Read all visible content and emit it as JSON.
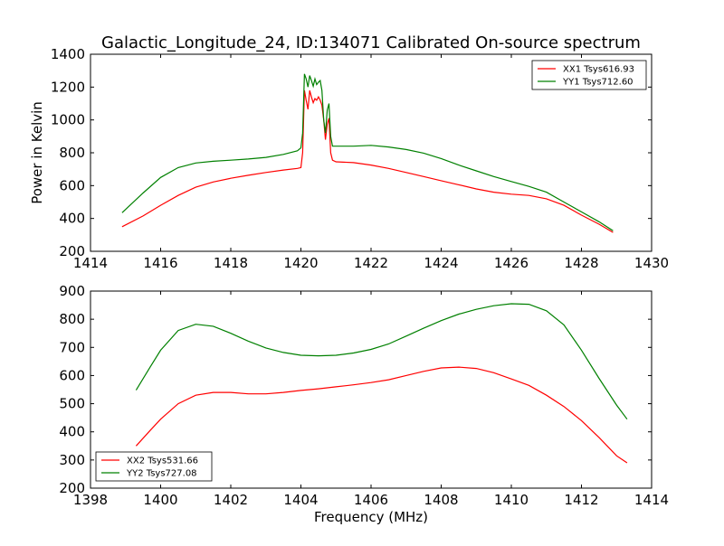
{
  "figure": {
    "title": "Galactic_Longitude_24, ID:134071 Calibrated On-source spectrum"
  },
  "chart_data": [
    {
      "type": "line",
      "title": "Galactic_Longitude_24, ID:134071 Calibrated On-source spectrum",
      "xlabel": "",
      "ylabel": "Power in Kelvin",
      "xlim": [
        1414,
        1430
      ],
      "ylim": [
        200,
        1400
      ],
      "xticks": [
        1414,
        1416,
        1418,
        1420,
        1422,
        1424,
        1426,
        1428,
        1430
      ],
      "yticks": [
        200,
        400,
        600,
        800,
        1000,
        1200,
        1400
      ],
      "legend": "top-right",
      "grid": false,
      "series": [
        {
          "name": "XX1 Tsys616.93",
          "color": "#ff0000",
          "x": [
            1414.9,
            1415.5,
            1416.0,
            1416.5,
            1417.0,
            1417.5,
            1418.0,
            1418.5,
            1419.0,
            1419.5,
            1419.9,
            1420.0,
            1420.05,
            1420.1,
            1420.15,
            1420.2,
            1420.25,
            1420.3,
            1420.35,
            1420.4,
            1420.45,
            1420.5,
            1420.55,
            1420.6,
            1420.65,
            1420.7,
            1420.75,
            1420.8,
            1420.85,
            1420.9,
            1421.0,
            1421.5,
            1422.0,
            1422.5,
            1423.0,
            1423.5,
            1424.0,
            1424.5,
            1425.0,
            1425.5,
            1426.0,
            1426.5,
            1427.0,
            1427.5,
            1428.0,
            1428.5,
            1428.9
          ],
          "values": [
            350,
            415,
            480,
            540,
            590,
            622,
            645,
            663,
            680,
            695,
            705,
            710,
            800,
            1180,
            1120,
            1065,
            1180,
            1140,
            1105,
            1130,
            1120,
            1140,
            1120,
            1090,
            1000,
            880,
            975,
            1010,
            800,
            755,
            745,
            740,
            725,
            705,
            680,
            655,
            630,
            605,
            580,
            560,
            548,
            540,
            520,
            480,
            420,
            365,
            315
          ]
        },
        {
          "name": "YY1 Tsys712.60",
          "color": "#008000",
          "x": [
            1414.9,
            1415.5,
            1416.0,
            1416.5,
            1417.0,
            1417.5,
            1418.0,
            1418.5,
            1419.0,
            1419.5,
            1419.9,
            1420.0,
            1420.05,
            1420.1,
            1420.15,
            1420.2,
            1420.25,
            1420.3,
            1420.35,
            1420.4,
            1420.45,
            1420.5,
            1420.55,
            1420.6,
            1420.65,
            1420.7,
            1420.75,
            1420.8,
            1420.85,
            1420.9,
            1421.0,
            1421.5,
            1422.0,
            1422.5,
            1423.0,
            1423.5,
            1424.0,
            1424.5,
            1425.0,
            1425.5,
            1426.0,
            1426.5,
            1427.0,
            1427.5,
            1428.0,
            1428.5,
            1428.9
          ],
          "values": [
            435,
            555,
            650,
            710,
            738,
            748,
            755,
            762,
            772,
            790,
            812,
            830,
            920,
            1280,
            1250,
            1200,
            1270,
            1240,
            1205,
            1250,
            1215,
            1230,
            1240,
            1180,
            1000,
            920,
            1060,
            1100,
            900,
            840,
            840,
            840,
            845,
            835,
            820,
            798,
            765,
            725,
            690,
            655,
            625,
            595,
            560,
            500,
            440,
            380,
            325
          ]
        }
      ]
    },
    {
      "type": "line",
      "title": "",
      "xlabel": "Frequency (MHz)",
      "ylabel": "",
      "xlim": [
        1398,
        1414
      ],
      "ylim": [
        200,
        900
      ],
      "xticks": [
        1398,
        1400,
        1402,
        1404,
        1406,
        1408,
        1410,
        1412,
        1414
      ],
      "yticks": [
        200,
        300,
        400,
        500,
        600,
        700,
        800,
        900
      ],
      "legend": "bottom-left",
      "grid": false,
      "series": [
        {
          "name": "XX2 Tsys531.66",
          "color": "#ff0000",
          "x": [
            1399.3,
            1399.7,
            1400.0,
            1400.5,
            1401.0,
            1401.5,
            1402.0,
            1402.5,
            1403.0,
            1403.5,
            1404.0,
            1404.5,
            1405.0,
            1405.5,
            1406.0,
            1406.5,
            1407.0,
            1407.5,
            1408.0,
            1408.5,
            1409.0,
            1409.5,
            1410.0,
            1410.5,
            1411.0,
            1411.5,
            1412.0,
            1412.5,
            1413.0,
            1413.3
          ],
          "values": [
            350,
            405,
            445,
            500,
            530,
            540,
            540,
            535,
            535,
            540,
            547,
            553,
            560,
            567,
            575,
            585,
            600,
            615,
            627,
            630,
            625,
            610,
            588,
            565,
            530,
            490,
            440,
            380,
            315,
            290
          ]
        },
        {
          "name": "YY2 Tsys727.08",
          "color": "#008000",
          "x": [
            1399.3,
            1399.7,
            1400.0,
            1400.5,
            1401.0,
            1401.5,
            1402.0,
            1402.5,
            1403.0,
            1403.5,
            1404.0,
            1404.5,
            1405.0,
            1405.5,
            1406.0,
            1406.5,
            1407.0,
            1407.5,
            1408.0,
            1408.5,
            1409.0,
            1409.5,
            1410.0,
            1410.5,
            1411.0,
            1411.5,
            1412.0,
            1412.5,
            1413.0,
            1413.3
          ],
          "values": [
            548,
            630,
            690,
            760,
            782,
            775,
            750,
            722,
            698,
            682,
            672,
            670,
            672,
            680,
            693,
            712,
            740,
            768,
            795,
            818,
            835,
            848,
            855,
            853,
            830,
            780,
            690,
            590,
            495,
            445
          ]
        }
      ]
    }
  ]
}
